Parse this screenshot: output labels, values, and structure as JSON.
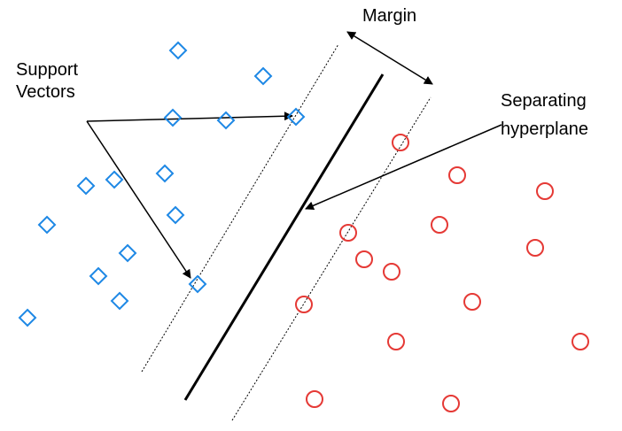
{
  "labels": {
    "margin": "Margin",
    "support_vectors_line1": "Support",
    "support_vectors_line2": "Vectors",
    "separating_line1": "Separating",
    "separating_line2": "hyperplane"
  },
  "colors": {
    "class_a": "#1e88e5",
    "class_b": "#e53935",
    "lines": "#000000"
  },
  "icons": {
    "class_a_marker": "diamond-icon",
    "class_b_marker": "circle-icon"
  }
}
